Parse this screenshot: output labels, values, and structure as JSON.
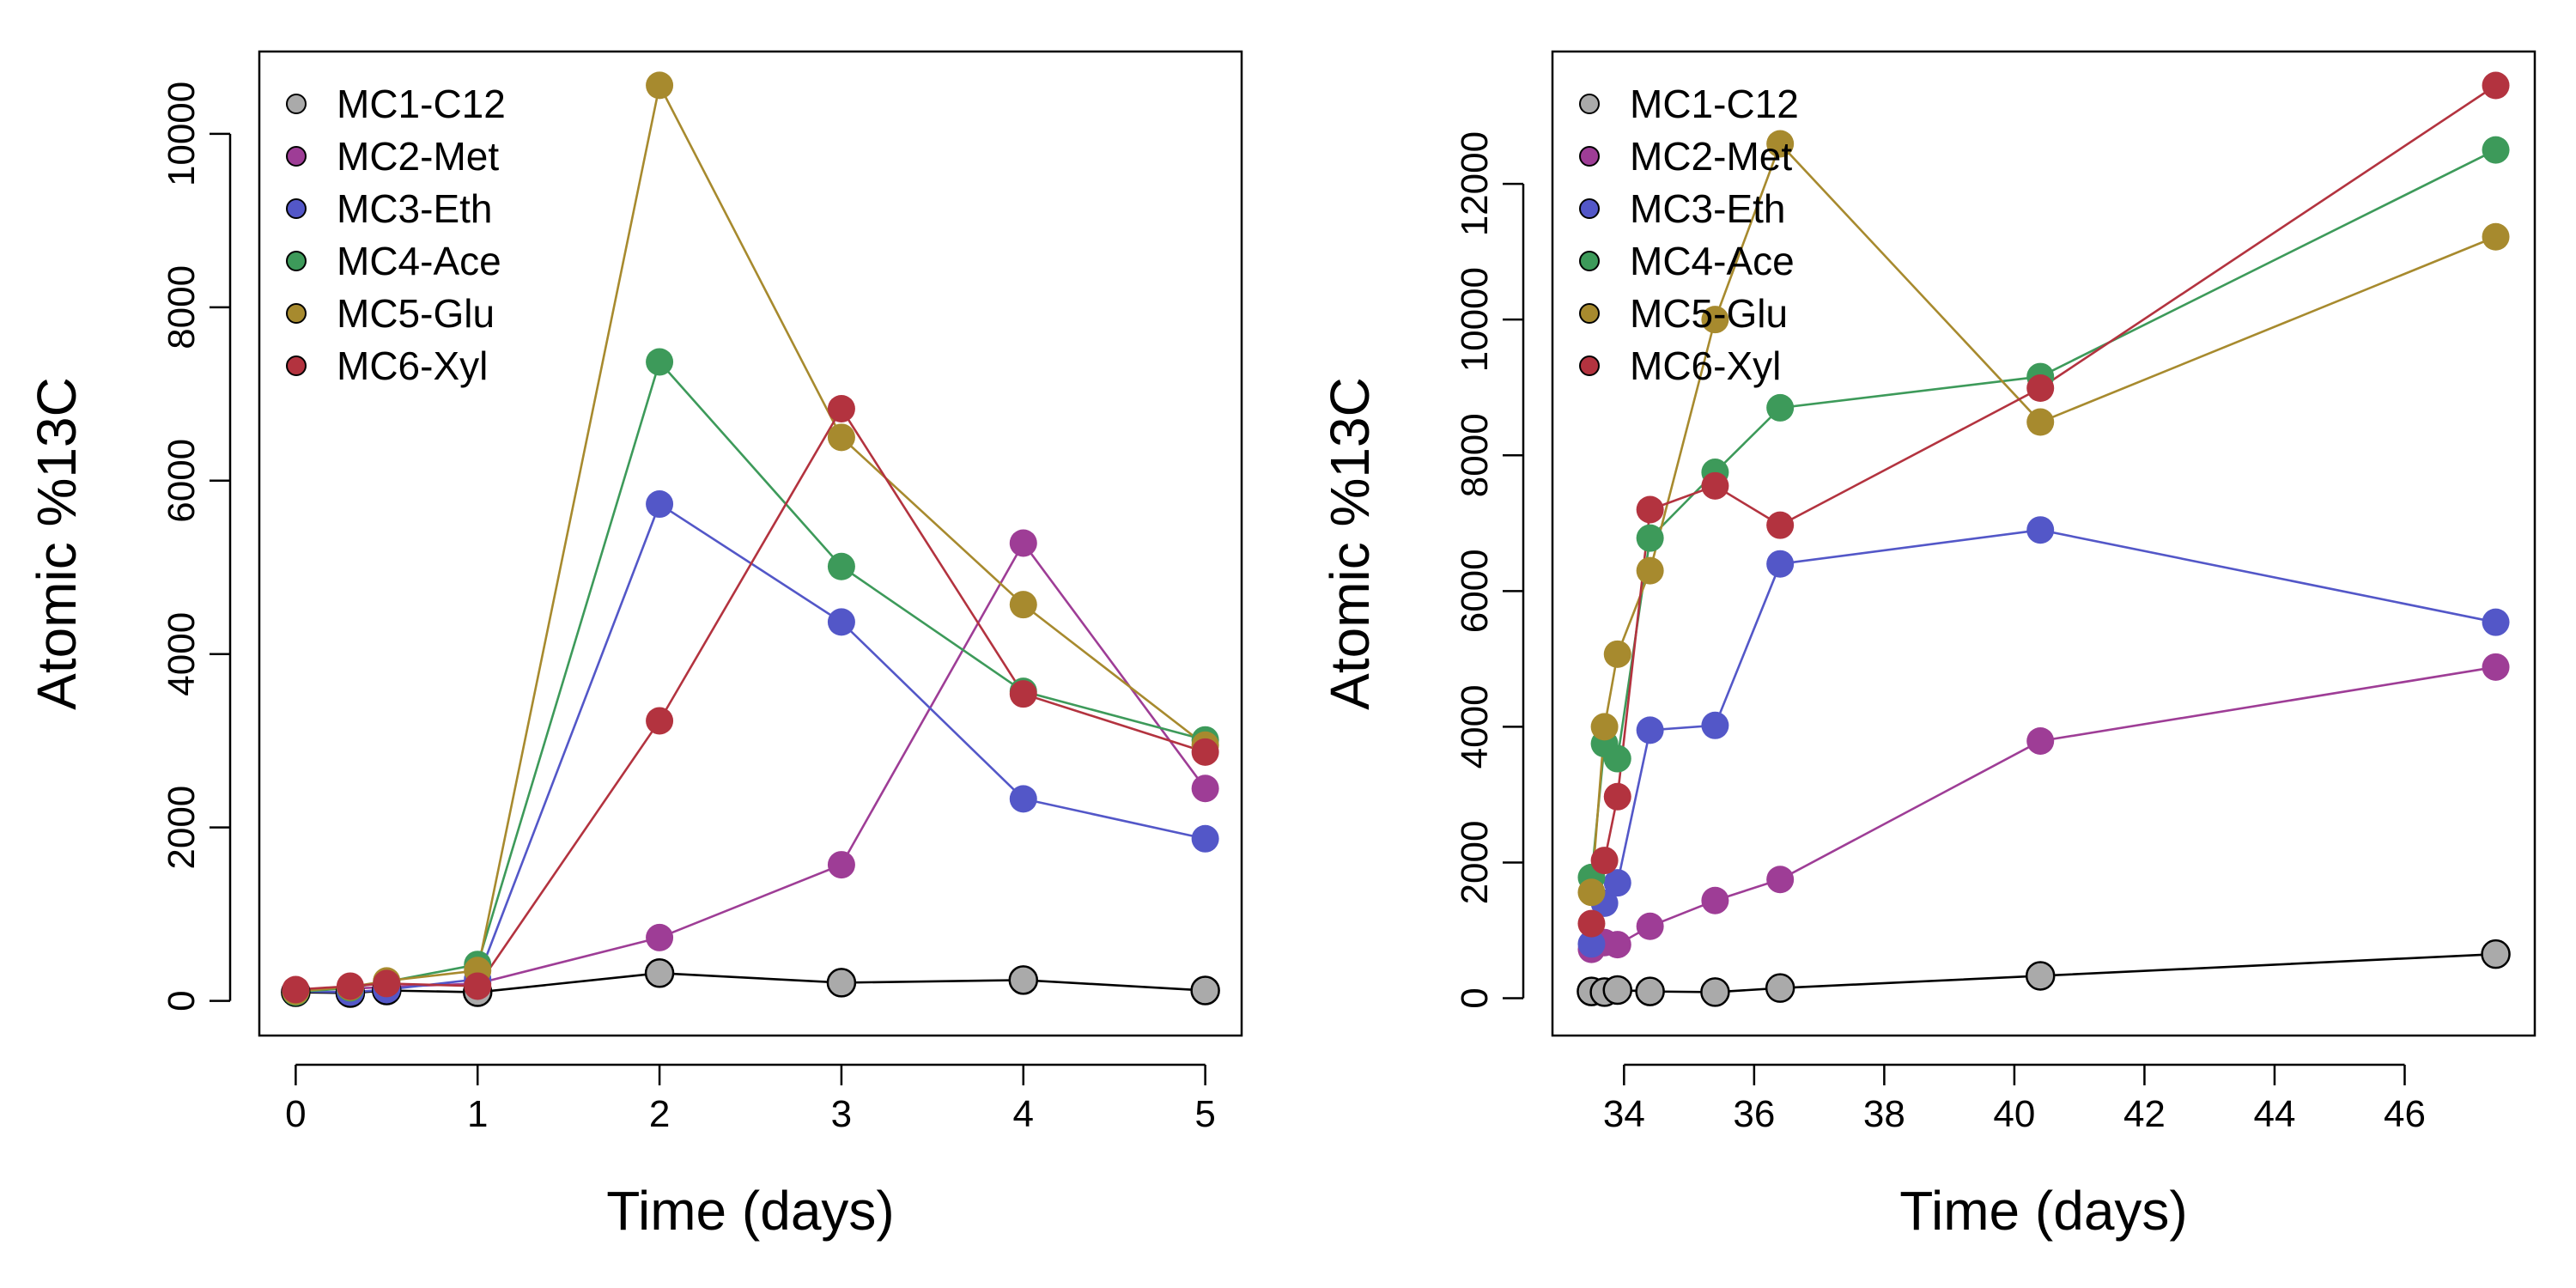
{
  "chart_data": [
    {
      "type": "line",
      "xlabel": "Time (days)",
      "ylabel": "Atomic %13C",
      "xlim": [
        -0.2,
        5.2
      ],
      "ylim": [
        -400,
        10950
      ],
      "xticks": [
        0,
        1,
        2,
        3,
        4,
        5
      ],
      "yticks": [
        0,
        2000,
        4000,
        6000,
        8000,
        10000
      ],
      "legend_position": "top-left",
      "series": [
        {
          "name": "MC1-C12",
          "color": "#aaaaaa",
          "line_color": "#000000",
          "outlined": true,
          "x": [
            0,
            0.3,
            0.5,
            1,
            2,
            3,
            4,
            5
          ],
          "y": [
            100,
            90,
            120,
            100,
            320,
            210,
            240,
            120
          ]
        },
        {
          "name": "MC2-Met",
          "color": "#9e3d96",
          "line_color": "#9e3d96",
          "x": [
            0,
            0.3,
            0.5,
            1,
            2,
            3,
            4,
            5
          ],
          "y": [
            120,
            140,
            160,
            200,
            730,
            1570,
            5280,
            2450
          ]
        },
        {
          "name": "MC3-Eth",
          "color": "#5357c8",
          "line_color": "#5357c8",
          "x": [
            0,
            0.3,
            0.5,
            1,
            2,
            3,
            4,
            5
          ],
          "y": [
            110,
            100,
            130,
            250,
            5730,
            4370,
            2330,
            1870
          ]
        },
        {
          "name": "MC4-Ace",
          "color": "#3d9a5a",
          "line_color": "#3d9a5a",
          "x": [
            0,
            0.3,
            0.5,
            1,
            2,
            3,
            4,
            5
          ],
          "y": [
            100,
            150,
            220,
            420,
            7370,
            5010,
            3570,
            3010
          ]
        },
        {
          "name": "MC5-Glu",
          "color": "#a78a2e",
          "line_color": "#a78a2e",
          "x": [
            0,
            0.3,
            0.5,
            1,
            2,
            3,
            4,
            5
          ],
          "y": [
            110,
            160,
            230,
            350,
            10560,
            6500,
            4570,
            2950
          ]
        },
        {
          "name": "MC6-Xyl",
          "color": "#b3333f",
          "line_color": "#b3333f",
          "x": [
            0,
            0.3,
            0.5,
            1,
            2,
            3,
            4,
            5
          ],
          "y": [
            130,
            170,
            200,
            170,
            3230,
            6830,
            3540,
            2870
          ]
        }
      ]
    },
    {
      "type": "line",
      "xlabel": "Time (days)",
      "ylabel": "Atomic %13C",
      "xlim": [
        32.9,
        48
      ],
      "ylim": [
        -550,
        13950
      ],
      "xticks": [
        34,
        36,
        38,
        40,
        42,
        44,
        46
      ],
      "yticks": [
        0,
        2000,
        4000,
        6000,
        8000,
        10000,
        12000
      ],
      "legend_position": "top-left",
      "series": [
        {
          "name": "MC1-C12",
          "color": "#aaaaaa",
          "line_color": "#000000",
          "outlined": true,
          "x": [
            33.5,
            33.7,
            33.9,
            34.4,
            35.4,
            36.4,
            40.4,
            47.4
          ],
          "y": [
            100,
            90,
            120,
            100,
            90,
            150,
            330,
            650
          ]
        },
        {
          "name": "MC2-Met",
          "color": "#9e3d96",
          "line_color": "#9e3d96",
          "x": [
            33.5,
            33.7,
            33.9,
            34.4,
            35.4,
            36.4,
            40.4,
            47.4
          ],
          "y": [
            720,
            820,
            790,
            1060,
            1440,
            1750,
            3790,
            4880
          ]
        },
        {
          "name": "MC3-Eth",
          "color": "#5357c8",
          "line_color": "#5357c8",
          "x": [
            33.5,
            33.7,
            33.9,
            34.4,
            35.4,
            36.4,
            40.4,
            47.4
          ],
          "y": [
            800,
            1400,
            1700,
            3950,
            4020,
            6400,
            6900,
            5540
          ]
        },
        {
          "name": "MC4-Ace",
          "color": "#3d9a5a",
          "line_color": "#3d9a5a",
          "x": [
            33.5,
            33.7,
            33.9,
            34.4,
            35.4,
            36.4,
            40.4,
            47.4
          ],
          "y": [
            1780,
            3750,
            3530,
            6780,
            7750,
            8700,
            9160,
            12500
          ]
        },
        {
          "name": "MC5-Glu",
          "color": "#a78a2e",
          "line_color": "#a78a2e",
          "x": [
            33.5,
            33.7,
            33.9,
            34.4,
            35.4,
            36.4,
            40.4,
            47.4
          ],
          "y": [
            1560,
            4000,
            5070,
            6300,
            10000,
            12590,
            8490,
            11220
          ]
        },
        {
          "name": "MC6-Xyl",
          "color": "#b3333f",
          "line_color": "#b3333f",
          "x": [
            33.5,
            33.7,
            33.9,
            34.4,
            35.4,
            36.4,
            40.4,
            47.4
          ],
          "y": [
            1100,
            2030,
            2970,
            7200,
            7550,
            6970,
            8990,
            13450
          ]
        }
      ]
    }
  ]
}
